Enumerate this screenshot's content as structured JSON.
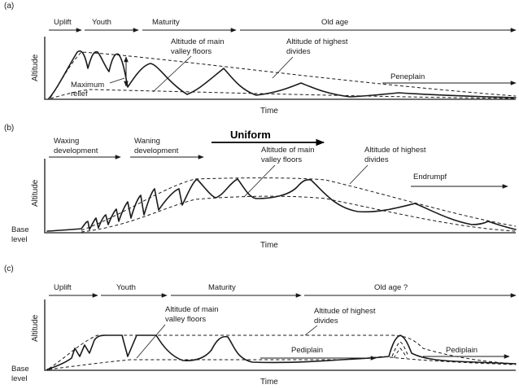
{
  "panels": [
    {
      "label": "(a)",
      "y_axis": "Altitude",
      "x_axis": "Time",
      "stages": [
        "Uplift",
        "Youth",
        "Maturity",
        "Old age"
      ],
      "annotations": {
        "main_valley_line1": "Altitude of main",
        "main_valley_line2": "valley floors",
        "highest_divides_line1": "Altitude of highest",
        "highest_divides_line2": "divides",
        "max_relief_line1": "Maximum",
        "max_relief_line2": "relief",
        "end_form": "Peneplain"
      }
    },
    {
      "label": "(b)",
      "y_axis": "Altitude",
      "x_axis": "Time",
      "base_level_line1": "Base",
      "base_level_line2": "level",
      "stages": {
        "waxing_line1": "Waxing",
        "waxing_line2": "development",
        "waning_line1": "Waning",
        "waning_line2": "development",
        "uniform": "Uniform"
      },
      "annotations": {
        "main_valley_line1": "Altitude of main",
        "main_valley_line2": "valley floors",
        "highest_divides_line1": "Altitude of highest",
        "highest_divides_line2": "divides",
        "end_form": "Endrumpf"
      }
    },
    {
      "label": "(c)",
      "y_axis": "Altitude",
      "x_axis": "Time",
      "base_level_line1": "Base",
      "base_level_line2": "level",
      "stages": [
        "Uplift",
        "Youth",
        "Maturity",
        "Old age ?"
      ],
      "annotations": {
        "main_valley_line1": "Altitude of main",
        "main_valley_line2": "valley floors",
        "highest_divides_line1": "Altitude of highest",
        "highest_divides_line2": "divides",
        "pediplain_mid": "Pediplain",
        "pediplain_end": "Pediplain"
      }
    }
  ]
}
